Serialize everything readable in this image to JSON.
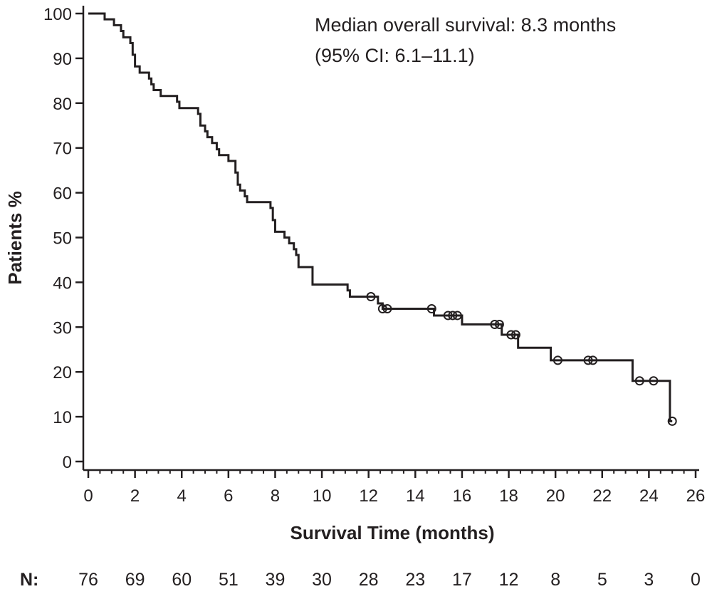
{
  "chart_data": {
    "type": "line",
    "subtype": "kaplan-meier",
    "annotation_lines": [
      "Median overall survival: 8.3 months",
      "(95% CI: 6.1–11.1)"
    ],
    "xlabel": "Survival Time (months)",
    "ylabel": "Patients %",
    "xlim": [
      0,
      26
    ],
    "ylim": [
      0,
      100
    ],
    "x_ticks": [
      0,
      2,
      4,
      6,
      8,
      10,
      12,
      14,
      16,
      18,
      20,
      22,
      24,
      26
    ],
    "y_ticks": [
      0,
      10,
      20,
      30,
      40,
      50,
      60,
      70,
      80,
      90,
      100
    ],
    "grid": false,
    "series": [
      {
        "color": "#231f20",
        "steps": [
          [
            0,
            100
          ],
          [
            0.7,
            98.7
          ],
          [
            1.1,
            97.4
          ],
          [
            1.4,
            96.1
          ],
          [
            1.5,
            94.7
          ],
          [
            1.8,
            93.4
          ],
          [
            1.9,
            90.8
          ],
          [
            2.0,
            88.2
          ],
          [
            2.2,
            86.8
          ],
          [
            2.6,
            85.5
          ],
          [
            2.7,
            84.2
          ],
          [
            2.8,
            82.9
          ],
          [
            3.1,
            81.6
          ],
          [
            3.8,
            80.3
          ],
          [
            3.9,
            78.9
          ],
          [
            4.7,
            77.6
          ],
          [
            4.8,
            75.0
          ],
          [
            5.0,
            73.7
          ],
          [
            5.1,
            72.4
          ],
          [
            5.3,
            71.1
          ],
          [
            5.5,
            69.7
          ],
          [
            5.6,
            68.4
          ],
          [
            6.0,
            67.1
          ],
          [
            6.3,
            64.5
          ],
          [
            6.4,
            61.8
          ],
          [
            6.5,
            60.5
          ],
          [
            6.7,
            59.2
          ],
          [
            6.8,
            57.9
          ],
          [
            7.8,
            56.6
          ],
          [
            7.9,
            53.9
          ],
          [
            8.0,
            51.3
          ],
          [
            8.4,
            50.0
          ],
          [
            8.6,
            48.7
          ],
          [
            8.8,
            47.4
          ],
          [
            8.9,
            46.1
          ],
          [
            9.0,
            43.4
          ],
          [
            9.6,
            39.5
          ],
          [
            11.1,
            38.2
          ],
          [
            11.2,
            36.8
          ],
          [
            12.4,
            35.3
          ],
          [
            12.6,
            34.1
          ],
          [
            14.8,
            32.6
          ],
          [
            16.0,
            30.6
          ],
          [
            17.7,
            28.3
          ],
          [
            18.4,
            25.4
          ],
          [
            19.8,
            22.6
          ],
          [
            23.3,
            18.0
          ],
          [
            24.9,
            9.0
          ]
        ],
        "censored": [
          [
            12.1,
            36.8
          ],
          [
            12.6,
            34.1
          ],
          [
            12.8,
            34.1
          ],
          [
            14.7,
            34.1
          ],
          [
            15.4,
            32.6
          ],
          [
            15.6,
            32.6
          ],
          [
            15.8,
            32.6
          ],
          [
            17.4,
            30.6
          ],
          [
            17.6,
            30.6
          ],
          [
            18.1,
            28.3
          ],
          [
            18.3,
            28.3
          ],
          [
            20.1,
            22.6
          ],
          [
            21.4,
            22.6
          ],
          [
            21.6,
            22.6
          ],
          [
            23.6,
            18.0
          ],
          [
            24.2,
            18.0
          ],
          [
            25.0,
            9.0
          ]
        ]
      }
    ],
    "risk_table": {
      "label": "N:",
      "times": [
        0,
        2,
        4,
        6,
        8,
        10,
        12,
        14,
        16,
        18,
        20,
        22,
        24,
        26
      ],
      "counts": [
        "76",
        "69",
        "60",
        "51",
        "39",
        "30",
        "28",
        "23",
        "17",
        "12",
        "8",
        "5",
        "3",
        "0"
      ]
    }
  }
}
